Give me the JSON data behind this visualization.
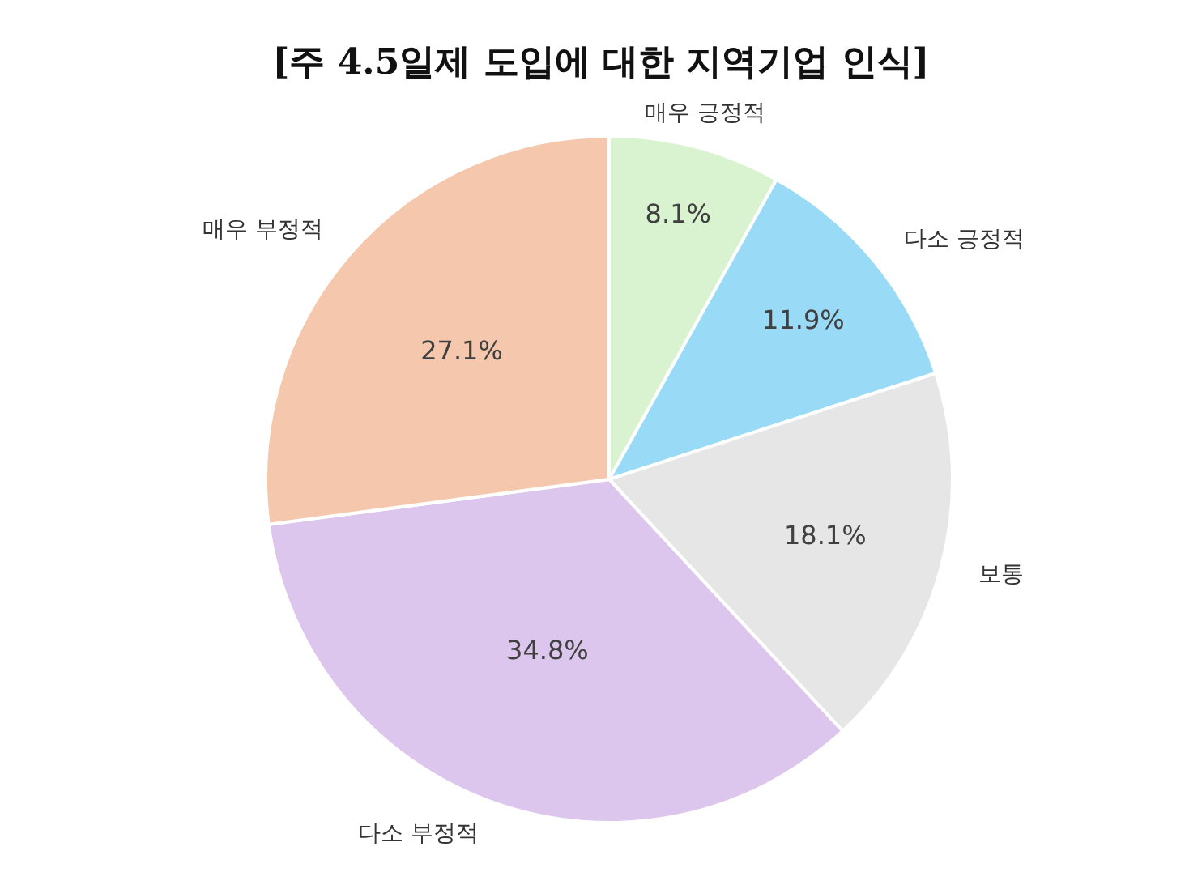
{
  "chart_data": {
    "type": "pie",
    "title": "[주 4.5일제 도입에 대한 지역기업 인식]",
    "categories": [
      "매우 긍정적",
      "다소 긍정적",
      "보통",
      "다소 부정적",
      "매우 부정적"
    ],
    "values": [
      8.1,
      11.9,
      18.1,
      34.8,
      27.1
    ],
    "value_labels": [
      "8.1%",
      "11.9%",
      "18.1%",
      "34.8%",
      "27.1%"
    ],
    "colors": [
      "#d9f2d0",
      "#99dbf7",
      "#e6e6e6",
      "#dcc6ee",
      "#f5c7ac"
    ],
    "legend": false
  }
}
